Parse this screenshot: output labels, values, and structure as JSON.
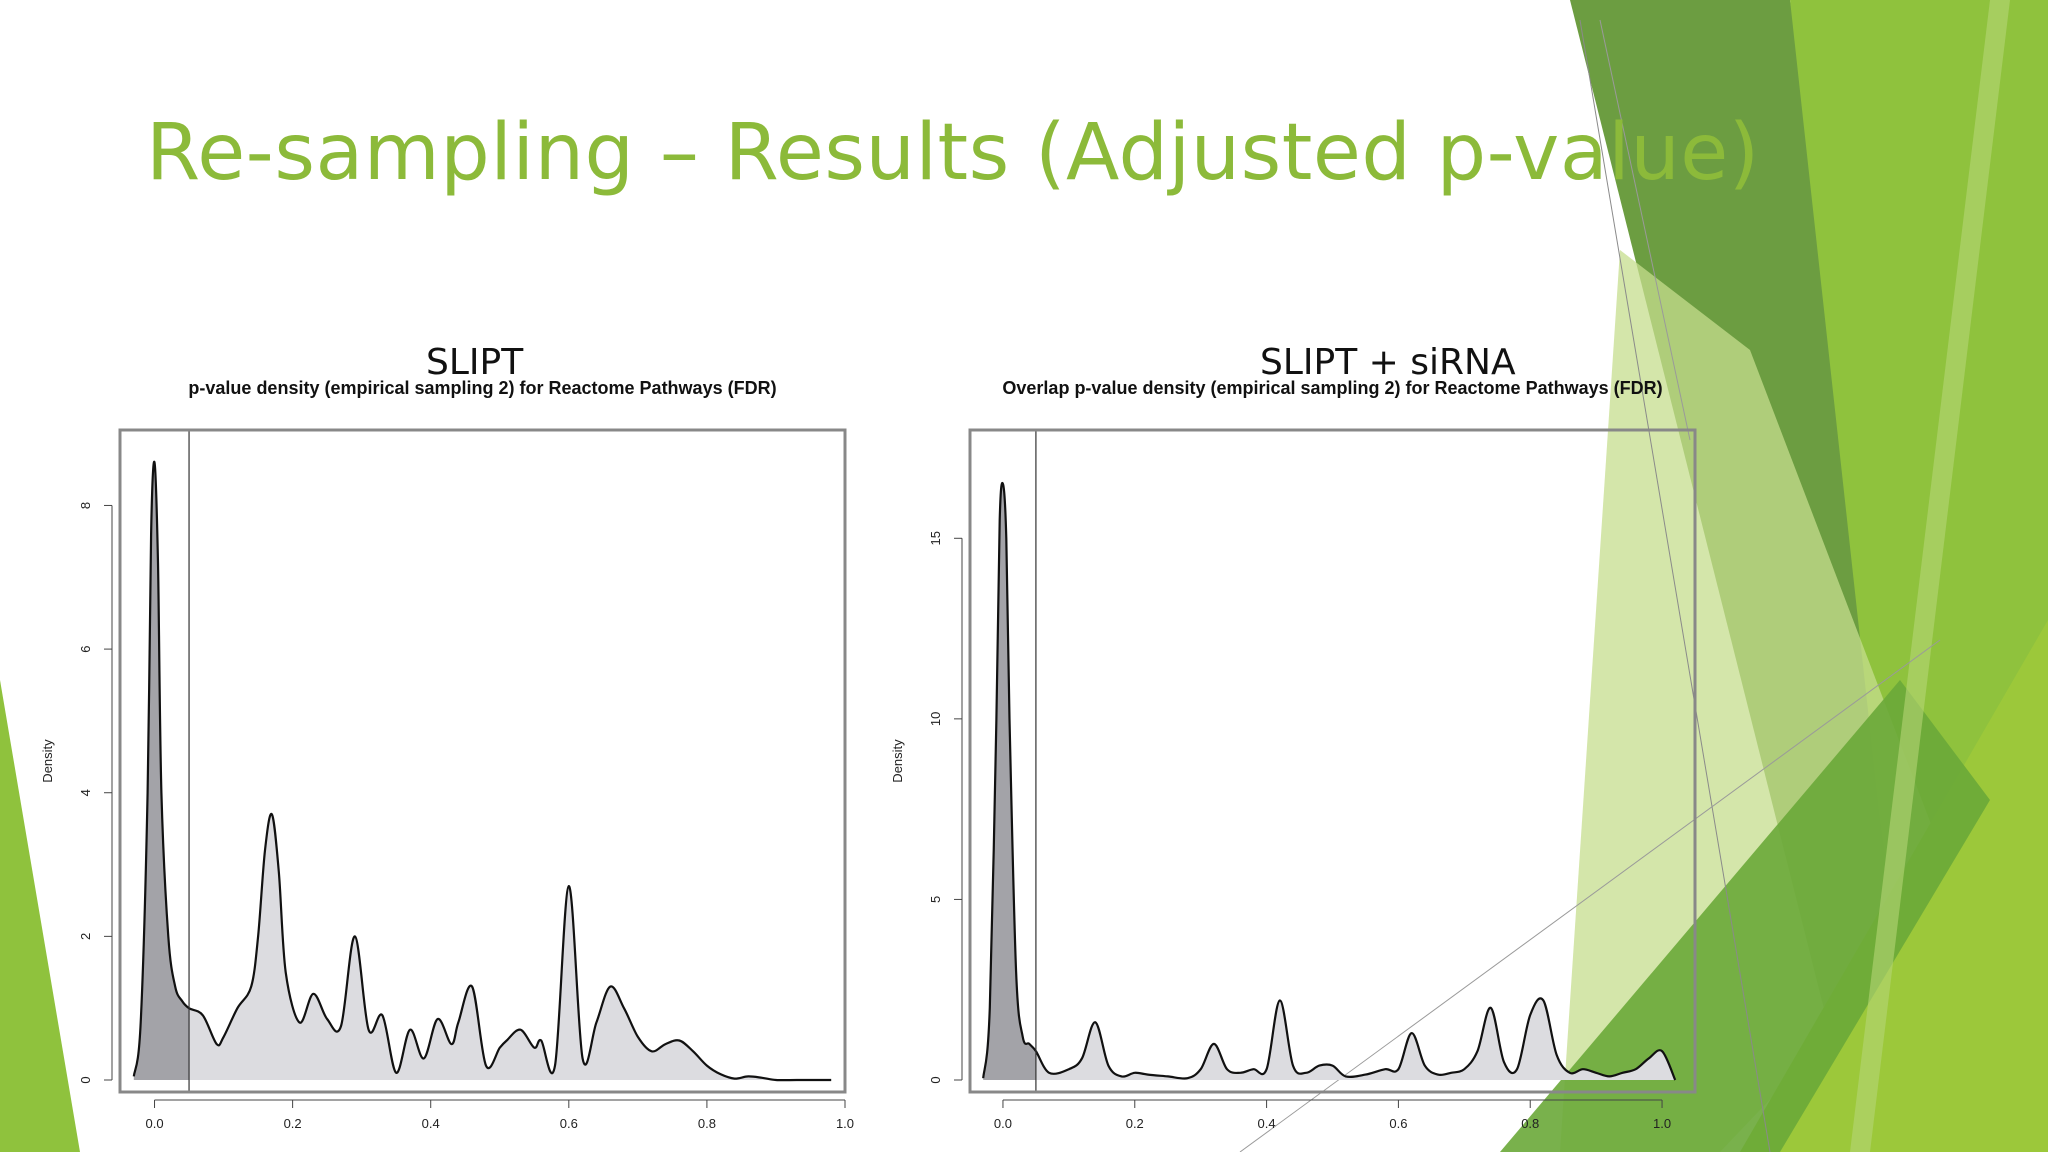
{
  "slide": {
    "title": "Re-sampling – Results (Adjusted p-value)",
    "panel_left_label": "SLIPT",
    "panel_right_label": "SLIPT + siRNA"
  },
  "colors": {
    "title_green": "#8cba3a",
    "deco_light": "#c6de8e",
    "deco_mid": "#8fc23d",
    "deco_dark": "#5f9531",
    "fill_sig": "#a3a3a8",
    "fill_rest": "#dcdce0"
  },
  "chart_data": [
    {
      "type": "area",
      "title": "p-value density (empirical sampling 2) for Reactome Pathways (FDR)",
      "xlabel": "",
      "ylabel": "Density",
      "xlim": [
        -0.05,
        1.0
      ],
      "ylim": [
        0,
        8.8
      ],
      "xticks": [
        "0.0",
        "0.2",
        "0.4",
        "0.6",
        "0.8",
        "1.0"
      ],
      "yticks": [
        "0",
        "2",
        "4",
        "6",
        "8"
      ],
      "threshold": 0.05,
      "x": [
        -0.03,
        -0.02,
        -0.01,
        -0.005,
        0.0,
        0.005,
        0.01,
        0.02,
        0.03,
        0.04,
        0.05,
        0.07,
        0.09,
        0.1,
        0.12,
        0.14,
        0.15,
        0.16,
        0.17,
        0.18,
        0.19,
        0.21,
        0.23,
        0.25,
        0.27,
        0.29,
        0.31,
        0.33,
        0.35,
        0.37,
        0.39,
        0.41,
        0.43,
        0.44,
        0.46,
        0.48,
        0.5,
        0.51,
        0.53,
        0.55,
        0.56,
        0.58,
        0.6,
        0.62,
        0.64,
        0.66,
        0.68,
        0.7,
        0.72,
        0.74,
        0.76,
        0.78,
        0.8,
        0.82,
        0.84,
        0.86,
        0.88,
        0.9,
        0.93,
        0.96,
        0.98
      ],
      "values": [
        0.05,
        0.8,
        4.0,
        7.6,
        8.6,
        7.2,
        4.0,
        2.0,
        1.3,
        1.1,
        1.0,
        0.9,
        0.5,
        0.6,
        1.0,
        1.3,
        2.0,
        3.2,
        3.7,
        2.9,
        1.5,
        0.8,
        1.2,
        0.85,
        0.75,
        2.0,
        0.7,
        0.9,
        0.1,
        0.7,
        0.3,
        0.85,
        0.5,
        0.8,
        1.3,
        0.2,
        0.45,
        0.55,
        0.7,
        0.45,
        0.55,
        0.2,
        2.7,
        0.3,
        0.8,
        1.3,
        1.0,
        0.6,
        0.4,
        0.5,
        0.55,
        0.4,
        0.2,
        0.08,
        0.02,
        0.05,
        0.03,
        0.0,
        0.0,
        0.0,
        0.0
      ]
    },
    {
      "type": "area",
      "title": "Overlap p-value density (empirical sampling 2) for Reactome Pathways (FDR)",
      "xlabel": "",
      "ylabel": "Density",
      "xlim": [
        -0.05,
        1.05
      ],
      "ylim": [
        0,
        17.5
      ],
      "xticks": [
        "0.0",
        "0.2",
        "0.4",
        "0.6",
        "0.8",
        "1.0"
      ],
      "yticks": [
        "0",
        "5",
        "10",
        "15"
      ],
      "threshold": 0.05,
      "x": [
        -0.03,
        -0.02,
        -0.01,
        -0.005,
        0.0,
        0.005,
        0.01,
        0.02,
        0.03,
        0.04,
        0.05,
        0.07,
        0.1,
        0.12,
        0.14,
        0.16,
        0.18,
        0.2,
        0.22,
        0.25,
        0.28,
        0.3,
        0.32,
        0.34,
        0.36,
        0.38,
        0.4,
        0.42,
        0.44,
        0.46,
        0.48,
        0.5,
        0.52,
        0.55,
        0.58,
        0.6,
        0.62,
        0.64,
        0.66,
        0.68,
        0.7,
        0.72,
        0.74,
        0.76,
        0.78,
        0.8,
        0.82,
        0.84,
        0.86,
        0.88,
        0.9,
        0.92,
        0.94,
        0.96,
        0.98,
        1.0,
        1.02
      ],
      "values": [
        0.05,
        2.0,
        10.0,
        15.5,
        16.5,
        15.0,
        10.0,
        3.0,
        1.2,
        1.0,
        0.8,
        0.2,
        0.3,
        0.6,
        1.6,
        0.4,
        0.1,
        0.2,
        0.15,
        0.1,
        0.05,
        0.3,
        1.0,
        0.3,
        0.2,
        0.3,
        0.3,
        2.2,
        0.4,
        0.2,
        0.4,
        0.4,
        0.1,
        0.15,
        0.3,
        0.3,
        1.3,
        0.4,
        0.15,
        0.2,
        0.3,
        0.8,
        2.0,
        0.5,
        0.3,
        1.8,
        2.2,
        0.7,
        0.2,
        0.3,
        0.2,
        0.1,
        0.2,
        0.3,
        0.6,
        0.8,
        0.0
      ]
    }
  ]
}
